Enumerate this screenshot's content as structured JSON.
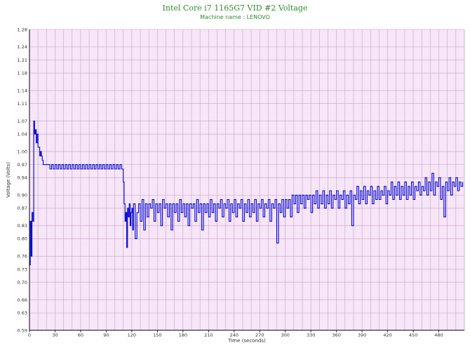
{
  "chart_data": {
    "type": "line",
    "title": "Intel Core i7 1165G7 VID #2 Voltage",
    "subtitle": "Machine name : LENOVO",
    "xlabel": "Time (seconds)",
    "ylabel": "Voltage (Volts)",
    "xlim": [
      0,
      510
    ],
    "ylim": [
      0.59,
      1.28
    ],
    "xticks": [
      0,
      30,
      60,
      90,
      120,
      150,
      180,
      210,
      240,
      270,
      300,
      330,
      360,
      390,
      420,
      450,
      480
    ],
    "yticks": [
      "0.59",
      "0.63",
      "0.66",
      "0.70",
      "0.73",
      "0.76",
      "0.80",
      "0.83",
      "0.87",
      "0.90",
      "0.94",
      "0.97",
      "1.00",
      "1.04",
      "1.07",
      "1.11",
      "1.14",
      "1.18",
      "1.21",
      "1.24",
      "1.28"
    ],
    "grid": true,
    "colors": {
      "line": "#0000cc",
      "plot_bg": "#f6e6f8",
      "grid": "#c8a0c8",
      "title": "#2e8b2e"
    },
    "series": [
      {
        "values": [
          [
            0,
            0.74
          ],
          [
            1,
            0.84
          ],
          [
            2,
            0.76
          ],
          [
            3,
            0.86
          ],
          [
            4,
            0.84
          ],
          [
            5,
            1.07
          ],
          [
            6,
            1.04
          ],
          [
            7,
            1.05
          ],
          [
            8,
            1.02
          ],
          [
            9,
            1.04
          ],
          [
            10,
            1.01
          ],
          [
            11,
            1.01
          ],
          [
            12,
            0.99
          ],
          [
            13,
            1.0
          ],
          [
            14,
            0.99
          ],
          [
            15,
            0.98
          ],
          [
            16,
            0.97
          ],
          [
            18,
            0.97
          ],
          [
            20,
            0.97
          ],
          [
            22,
            0.97
          ],
          [
            24,
            0.96
          ],
          [
            26,
            0.97
          ],
          [
            28,
            0.96
          ],
          [
            30,
            0.97
          ],
          [
            32,
            0.96
          ],
          [
            34,
            0.97
          ],
          [
            36,
            0.96
          ],
          [
            38,
            0.97
          ],
          [
            40,
            0.96
          ],
          [
            42,
            0.97
          ],
          [
            44,
            0.96
          ],
          [
            46,
            0.97
          ],
          [
            48,
            0.96
          ],
          [
            50,
            0.97
          ],
          [
            52,
            0.96
          ],
          [
            54,
            0.97
          ],
          [
            56,
            0.96
          ],
          [
            58,
            0.97
          ],
          [
            60,
            0.96
          ],
          [
            62,
            0.97
          ],
          [
            64,
            0.96
          ],
          [
            66,
            0.97
          ],
          [
            68,
            0.96
          ],
          [
            70,
            0.97
          ],
          [
            72,
            0.96
          ],
          [
            74,
            0.97
          ],
          [
            76,
            0.96
          ],
          [
            78,
            0.97
          ],
          [
            80,
            0.96
          ],
          [
            82,
            0.97
          ],
          [
            84,
            0.96
          ],
          [
            86,
            0.97
          ],
          [
            88,
            0.96
          ],
          [
            90,
            0.97
          ],
          [
            92,
            0.96
          ],
          [
            94,
            0.97
          ],
          [
            96,
            0.96
          ],
          [
            98,
            0.97
          ],
          [
            100,
            0.96
          ],
          [
            102,
            0.97
          ],
          [
            104,
            0.96
          ],
          [
            106,
            0.97
          ],
          [
            108,
            0.96
          ],
          [
            110,
            0.93
          ],
          [
            111,
            0.88
          ],
          [
            112,
            0.84
          ],
          [
            113,
            0.86
          ],
          [
            114,
            0.78
          ],
          [
            115,
            0.87
          ],
          [
            116,
            0.85
          ],
          [
            117,
            0.88
          ],
          [
            118,
            0.83
          ],
          [
            119,
            0.86
          ],
          [
            120,
            0.87
          ],
          [
            121,
            0.82
          ],
          [
            122,
            0.88
          ],
          [
            124,
            0.8
          ],
          [
            126,
            0.86
          ],
          [
            128,
            0.88
          ],
          [
            130,
            0.84
          ],
          [
            132,
            0.89
          ],
          [
            134,
            0.82
          ],
          [
            136,
            0.88
          ],
          [
            138,
            0.85
          ],
          [
            140,
            0.88
          ],
          [
            142,
            0.87
          ],
          [
            144,
            0.89
          ],
          [
            146,
            0.84
          ],
          [
            148,
            0.88
          ],
          [
            150,
            0.86
          ],
          [
            152,
            0.88
          ],
          [
            154,
            0.83
          ],
          [
            156,
            0.89
          ],
          [
            158,
            0.87
          ],
          [
            160,
            0.88
          ],
          [
            162,
            0.85
          ],
          [
            164,
            0.88
          ],
          [
            166,
            0.82
          ],
          [
            168,
            0.88
          ],
          [
            170,
            0.86
          ],
          [
            172,
            0.88
          ],
          [
            174,
            0.84
          ],
          [
            176,
            0.89
          ],
          [
            178,
            0.86
          ],
          [
            180,
            0.88
          ],
          [
            182,
            0.85
          ],
          [
            184,
            0.88
          ],
          [
            186,
            0.83
          ],
          [
            188,
            0.88
          ],
          [
            190,
            0.87
          ],
          [
            192,
            0.88
          ],
          [
            194,
            0.84
          ],
          [
            196,
            0.89
          ],
          [
            198,
            0.86
          ],
          [
            200,
            0.88
          ],
          [
            202,
            0.82
          ],
          [
            204,
            0.88
          ],
          [
            206,
            0.86
          ],
          [
            208,
            0.88
          ],
          [
            210,
            0.85
          ],
          [
            212,
            0.89
          ],
          [
            214,
            0.86
          ],
          [
            216,
            0.88
          ],
          [
            218,
            0.84
          ],
          [
            220,
            0.88
          ],
          [
            222,
            0.87
          ],
          [
            224,
            0.89
          ],
          [
            226,
            0.85
          ],
          [
            228,
            0.88
          ],
          [
            230,
            0.87
          ],
          [
            232,
            0.89
          ],
          [
            234,
            0.84
          ],
          [
            236,
            0.88
          ],
          [
            238,
            0.86
          ],
          [
            240,
            0.89
          ],
          [
            242,
            0.85
          ],
          [
            244,
            0.88
          ],
          [
            246,
            0.87
          ],
          [
            248,
            0.89
          ],
          [
            250,
            0.84
          ],
          [
            252,
            0.88
          ],
          [
            254,
            0.86
          ],
          [
            256,
            0.89
          ],
          [
            258,
            0.85
          ],
          [
            260,
            0.88
          ],
          [
            262,
            0.86
          ],
          [
            264,
            0.89
          ],
          [
            266,
            0.84
          ],
          [
            268,
            0.88
          ],
          [
            270,
            0.87
          ],
          [
            272,
            0.89
          ],
          [
            274,
            0.85
          ],
          [
            276,
            0.88
          ],
          [
            278,
            0.87
          ],
          [
            280,
            0.89
          ],
          [
            282,
            0.84
          ],
          [
            284,
            0.88
          ],
          [
            286,
            0.87
          ],
          [
            288,
            0.89
          ],
          [
            290,
            0.79
          ],
          [
            292,
            0.88
          ],
          [
            294,
            0.86
          ],
          [
            296,
            0.89
          ],
          [
            298,
            0.85
          ],
          [
            300,
            0.89
          ],
          [
            302,
            0.87
          ],
          [
            304,
            0.89
          ],
          [
            306,
            0.85
          ],
          [
            308,
            0.9
          ],
          [
            310,
            0.88
          ],
          [
            312,
            0.9
          ],
          [
            314,
            0.86
          ],
          [
            316,
            0.9
          ],
          [
            318,
            0.88
          ],
          [
            320,
            0.9
          ],
          [
            322,
            0.87
          ],
          [
            324,
            0.9
          ],
          [
            326,
            0.89
          ],
          [
            328,
            0.9
          ],
          [
            330,
            0.86
          ],
          [
            332,
            0.9
          ],
          [
            334,
            0.88
          ],
          [
            336,
            0.91
          ],
          [
            338,
            0.87
          ],
          [
            340,
            0.9
          ],
          [
            342,
            0.88
          ],
          [
            344,
            0.91
          ],
          [
            346,
            0.87
          ],
          [
            348,
            0.9
          ],
          [
            350,
            0.88
          ],
          [
            352,
            0.91
          ],
          [
            354,
            0.87
          ],
          [
            356,
            0.9
          ],
          [
            358,
            0.89
          ],
          [
            360,
            0.91
          ],
          [
            362,
            0.87
          ],
          [
            364,
            0.9
          ],
          [
            366,
            0.89
          ],
          [
            368,
            0.91
          ],
          [
            370,
            0.87
          ],
          [
            372,
            0.9
          ],
          [
            374,
            0.88
          ],
          [
            376,
            0.91
          ],
          [
            378,
            0.83
          ],
          [
            380,
            0.9
          ],
          [
            382,
            0.89
          ],
          [
            384,
            0.92
          ],
          [
            386,
            0.88
          ],
          [
            388,
            0.91
          ],
          [
            390,
            0.89
          ],
          [
            392,
            0.92
          ],
          [
            394,
            0.88
          ],
          [
            396,
            0.91
          ],
          [
            398,
            0.9
          ],
          [
            400,
            0.92
          ],
          [
            402,
            0.88
          ],
          [
            404,
            0.91
          ],
          [
            406,
            0.89
          ],
          [
            408,
            0.92
          ],
          [
            410,
            0.89
          ],
          [
            412,
            0.91
          ],
          [
            414,
            0.9
          ],
          [
            416,
            0.92
          ],
          [
            418,
            0.88
          ],
          [
            420,
            0.91
          ],
          [
            422,
            0.9
          ],
          [
            424,
            0.93
          ],
          [
            426,
            0.89
          ],
          [
            428,
            0.92
          ],
          [
            430,
            0.9
          ],
          [
            432,
            0.93
          ],
          [
            434,
            0.89
          ],
          [
            436,
            0.92
          ],
          [
            438,
            0.9
          ],
          [
            440,
            0.93
          ],
          [
            442,
            0.89
          ],
          [
            444,
            0.92
          ],
          [
            446,
            0.9
          ],
          [
            448,
            0.93
          ],
          [
            450,
            0.89
          ],
          [
            452,
            0.92
          ],
          [
            454,
            0.91
          ],
          [
            456,
            0.93
          ],
          [
            458,
            0.9
          ],
          [
            460,
            0.92
          ],
          [
            462,
            0.91
          ],
          [
            464,
            0.94
          ],
          [
            466,
            0.9
          ],
          [
            468,
            0.93
          ],
          [
            470,
            0.91
          ],
          [
            472,
            0.95
          ],
          [
            474,
            0.9
          ],
          [
            476,
            0.93
          ],
          [
            478,
            0.92
          ],
          [
            480,
            0.94
          ],
          [
            482,
            0.89
          ],
          [
            484,
            0.92
          ],
          [
            486,
            0.85
          ],
          [
            488,
            0.93
          ],
          [
            490,
            0.91
          ],
          [
            492,
            0.94
          ],
          [
            494,
            0.9
          ],
          [
            496,
            0.93
          ],
          [
            498,
            0.92
          ],
          [
            500,
            0.94
          ],
          [
            502,
            0.91
          ],
          [
            504,
            0.93
          ],
          [
            506,
            0.92
          ],
          [
            508,
            0.93
          ]
        ]
      }
    ]
  }
}
